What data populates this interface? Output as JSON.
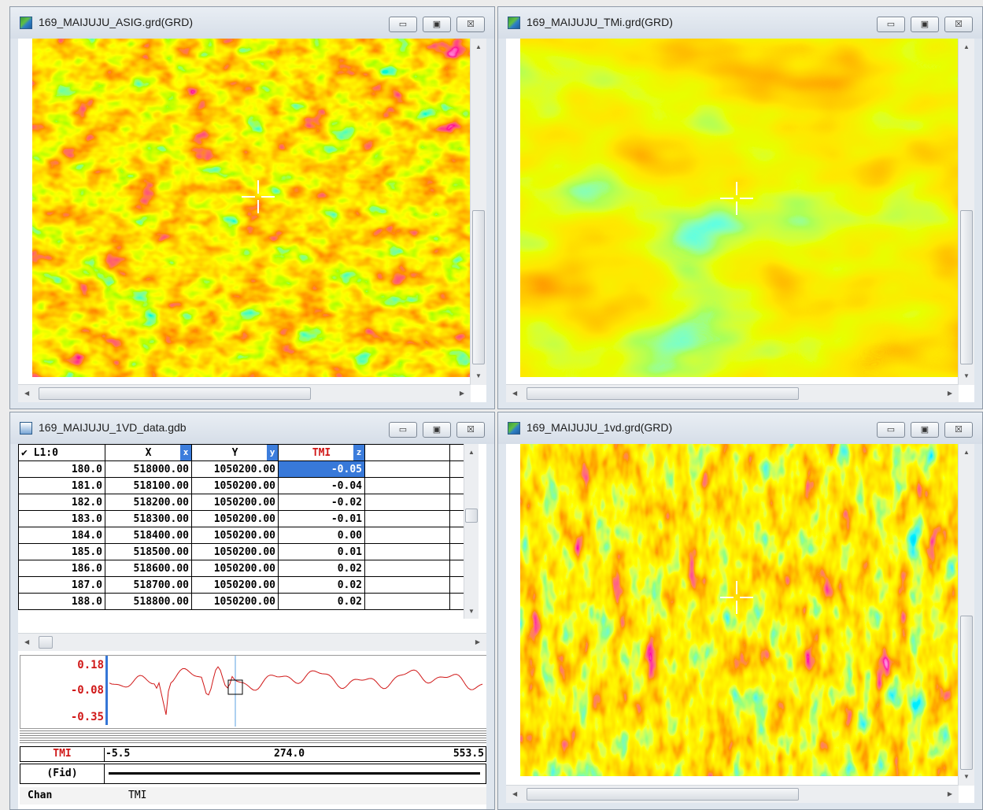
{
  "windows": {
    "asig": {
      "title": "169_MAIJUJU_ASIG.grd(GRD)"
    },
    "tmi": {
      "title": "169_MAIJUJU_TMi.grd(GRD)"
    },
    "gdb": {
      "title": "169_MAIJUJU_1VD_data.gdb"
    },
    "vd": {
      "title": "169_MAIJUJU_1vd.grd(GRD)"
    }
  },
  "controls": {
    "minimize": "▭",
    "restore": "▣",
    "close": "☒"
  },
  "icons": {
    "app": "grid-map-icon",
    "db": "database-icon"
  },
  "table": {
    "line_header": "✔ L1:0",
    "columns": [
      {
        "name": "X",
        "tag": "x"
      },
      {
        "name": "Y",
        "tag": "y"
      },
      {
        "name": "TMI",
        "tag": "z"
      }
    ],
    "rows": [
      {
        "fid": "180.0",
        "x": "518000.00",
        "y": "1050200.00",
        "tmi": "-0.05"
      },
      {
        "fid": "181.0",
        "x": "518100.00",
        "y": "1050200.00",
        "tmi": "-0.04"
      },
      {
        "fid": "182.0",
        "x": "518200.00",
        "y": "1050200.00",
        "tmi": "-0.02"
      },
      {
        "fid": "183.0",
        "x": "518300.00",
        "y": "1050200.00",
        "tmi": "-0.01"
      },
      {
        "fid": "184.0",
        "x": "518400.00",
        "y": "1050200.00",
        "tmi": "0.00"
      },
      {
        "fid": "185.0",
        "x": "518500.00",
        "y": "1050200.00",
        "tmi": "0.01"
      },
      {
        "fid": "186.0",
        "x": "518600.00",
        "y": "1050200.00",
        "tmi": "0.02"
      },
      {
        "fid": "187.0",
        "x": "518700.00",
        "y": "1050200.00",
        "tmi": "0.02"
      },
      {
        "fid": "188.0",
        "x": "518800.00",
        "y": "1050200.00",
        "tmi": "0.02"
      }
    ]
  },
  "profile": {
    "y_ticks": [
      "0.18",
      "-0.08",
      "-0.35"
    ],
    "channel": "TMI",
    "fid_label": "(Fid)",
    "x_min": "-5.5",
    "x_mid": "274.0",
    "x_max": "553.5",
    "chan_label": "Chan",
    "chan_value": "TMI",
    "line_color": "#d01818"
  },
  "colors": {
    "accent": "#3879d9",
    "tmi_red": "#d01818"
  }
}
